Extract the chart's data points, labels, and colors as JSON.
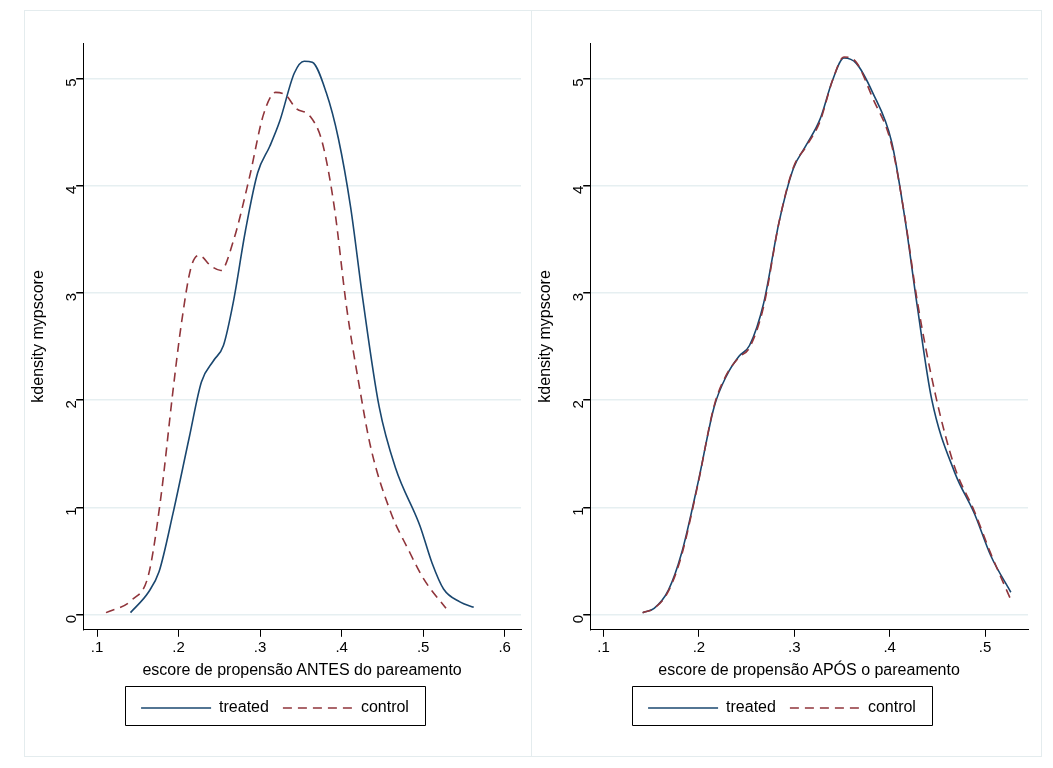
{
  "chart_data": [
    {
      "type": "line",
      "xlabel": "escore de propensão ANTES do pareamento",
      "ylabel": "kdensity mypscore",
      "xlim": [
        0.083,
        0.62
      ],
      "ylim": [
        -0.14,
        5.33
      ],
      "xticks": [
        {
          "value": 0.1,
          "label": ".1"
        },
        {
          "value": 0.2,
          "label": ".2"
        },
        {
          "value": 0.3,
          "label": ".3"
        },
        {
          "value": 0.4,
          "label": ".4"
        },
        {
          "value": 0.5,
          "label": ".5"
        },
        {
          "value": 0.6,
          "label": ".6"
        }
      ],
      "yticks": [
        0,
        1,
        2,
        3,
        4,
        5
      ],
      "grid": "y",
      "legend": "bottom",
      "marker": "none",
      "series": [
        {
          "name": "treated",
          "color": "#1a476f",
          "line_style": "solid",
          "x": [
            0.141,
            0.163,
            0.176,
            0.193,
            0.213,
            0.228,
            0.243,
            0.255,
            0.267,
            0.282,
            0.297,
            0.312,
            0.324,
            0.342,
            0.354,
            0.364,
            0.381,
            0.396,
            0.411,
            0.426,
            0.446,
            0.466,
            0.496,
            0.511,
            0.525,
            0.545,
            0.562
          ],
          "values": [
            0.02,
            0.21,
            0.4,
            0.94,
            1.65,
            2.17,
            2.37,
            2.51,
            2.91,
            3.58,
            4.12,
            4.37,
            4.6,
            5.05,
            5.16,
            5.15,
            4.87,
            4.44,
            3.8,
            2.94,
            1.94,
            1.37,
            0.83,
            0.48,
            0.24,
            0.12,
            0.07
          ]
        },
        {
          "name": "control",
          "color": "#90353b",
          "line_style": "dashed",
          "x": [
            0.111,
            0.143,
            0.163,
            0.178,
            0.193,
            0.203,
            0.215,
            0.225,
            0.24,
            0.252,
            0.267,
            0.287,
            0.304,
            0.319,
            0.332,
            0.344,
            0.361,
            0.376,
            0.391,
            0.406,
            0.421,
            0.436,
            0.461,
            0.481,
            0.501,
            0.528
          ],
          "values": [
            0.02,
            0.14,
            0.37,
            1.08,
            2.08,
            2.69,
            3.23,
            3.35,
            3.25,
            3.21,
            3.48,
            4.08,
            4.66,
            4.87,
            4.84,
            4.72,
            4.65,
            4.41,
            3.8,
            2.87,
            2.16,
            1.55,
            0.94,
            0.62,
            0.33,
            0.06
          ]
        }
      ]
    },
    {
      "type": "line",
      "xlabel": "escore de propensão APÓS o pareamento",
      "ylabel": "kdensity mypscore",
      "xlim": [
        0.086,
        0.545
      ],
      "ylim": [
        -0.14,
        5.33
      ],
      "xticks": [
        {
          "value": 0.1,
          "label": ".1"
        },
        {
          "value": 0.2,
          "label": ".2"
        },
        {
          "value": 0.3,
          "label": ".3"
        },
        {
          "value": 0.4,
          "label": ".4"
        },
        {
          "value": 0.5,
          "label": ".5"
        }
      ],
      "yticks": [
        0,
        1,
        2,
        3,
        4,
        5
      ],
      "grid": "y",
      "legend": "bottom",
      "marker": "none",
      "series": [
        {
          "name": "treated",
          "color": "#1a476f",
          "line_style": "solid",
          "x": [
            0.141,
            0.153,
            0.168,
            0.182,
            0.199,
            0.216,
            0.229,
            0.242,
            0.253,
            0.268,
            0.284,
            0.299,
            0.312,
            0.327,
            0.34,
            0.352,
            0.365,
            0.382,
            0.402,
            0.416,
            0.429,
            0.444,
            0.468,
            0.489,
            0.506,
            0.527
          ],
          "values": [
            0.02,
            0.06,
            0.23,
            0.58,
            1.23,
            1.94,
            2.23,
            2.41,
            2.51,
            2.91,
            3.66,
            4.16,
            4.37,
            4.62,
            4.98,
            5.19,
            5.14,
            4.87,
            4.41,
            3.69,
            2.87,
            2.01,
            1.33,
            0.94,
            0.55,
            0.21
          ]
        },
        {
          "name": "control",
          "color": "#90353b",
          "line_style": "dashed",
          "x": [
            0.141,
            0.153,
            0.168,
            0.182,
            0.199,
            0.216,
            0.229,
            0.242,
            0.253,
            0.268,
            0.284,
            0.299,
            0.312,
            0.327,
            0.34,
            0.352,
            0.365,
            0.382,
            0.402,
            0.416,
            0.429,
            0.448,
            0.468,
            0.489,
            0.506,
            0.527
          ],
          "values": [
            0.02,
            0.06,
            0.22,
            0.56,
            1.22,
            1.95,
            2.24,
            2.4,
            2.49,
            2.88,
            3.66,
            4.17,
            4.36,
            4.6,
            4.98,
            5.2,
            5.15,
            4.82,
            4.38,
            3.7,
            2.92,
            2.05,
            1.38,
            0.96,
            0.57,
            0.14
          ]
        }
      ]
    }
  ]
}
